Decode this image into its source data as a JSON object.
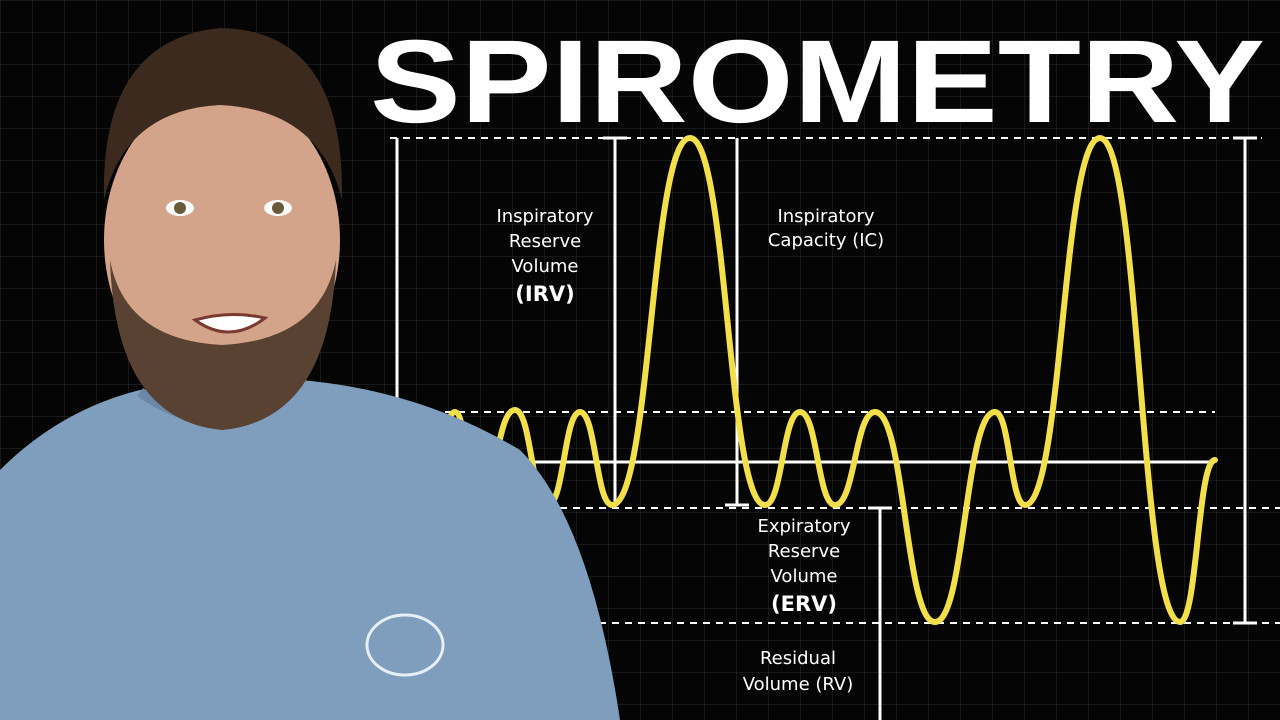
{
  "title": "SPIROMETRY",
  "labels": [
    {
      "lines": [
        "Inspiratory",
        "Reserve",
        "Volume",
        "(IRV)"
      ]
    },
    {
      "lines": [
        "Inspiratory",
        "Capacity (IC)"
      ]
    },
    {
      "lines": [
        "Expiratory",
        "Reserve",
        "Volume",
        "(ERV)"
      ]
    },
    {
      "lines": [
        "Residual",
        "Volume (RV)"
      ]
    }
  ]
}
